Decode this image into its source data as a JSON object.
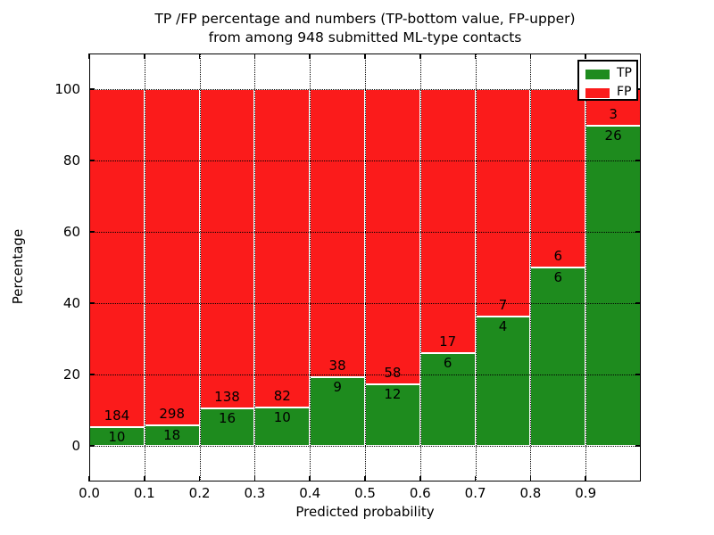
{
  "figure": {
    "title_line1": "TP /FP percentage and numbers (TP-bottom value, FP-upper)",
    "title_line2": "from among 948 submitted ML-type contacts",
    "xlabel": "Predicted probability",
    "ylabel": "Percentage"
  },
  "legend": {
    "items": [
      {
        "label": "TP",
        "color": "#1e8b1e"
      },
      {
        "label": "FP",
        "color": "#fb1b1b"
      }
    ]
  },
  "chart_data": {
    "type": "bar",
    "stacked": true,
    "normalized_to_percent": true,
    "title": "TP /FP percentage and numbers (TP-bottom value, FP-upper) from among 948 submitted ML-type contacts",
    "xlabel": "Predicted probability",
    "ylabel": "Percentage",
    "total_contacts": 948,
    "bin_starts": [
      0.0,
      0.1,
      0.2,
      0.3,
      0.4,
      0.5,
      0.6,
      0.7,
      0.8,
      0.9
    ],
    "bin_width": 0.1,
    "series": [
      {
        "name": "TP",
        "color": "#1e8b1e",
        "counts": [
          10,
          18,
          16,
          10,
          9,
          12,
          6,
          4,
          6,
          26
        ],
        "percent": [
          5.15,
          5.7,
          10.39,
          10.87,
          19.15,
          17.14,
          26.09,
          36.36,
          50.0,
          89.66
        ]
      },
      {
        "name": "FP",
        "color": "#fb1b1b",
        "counts": [
          184,
          298,
          138,
          82,
          38,
          58,
          17,
          7,
          6,
          3
        ],
        "percent": [
          94.85,
          94.3,
          89.61,
          89.13,
          80.85,
          82.86,
          73.91,
          63.64,
          50.0,
          10.34
        ]
      }
    ],
    "yticks": [
      0,
      20,
      40,
      60,
      80,
      100
    ],
    "xticks": [
      "0.0",
      "0.1",
      "0.2",
      "0.3",
      "0.4",
      "0.5",
      "0.6",
      "0.7",
      "0.8",
      "0.9"
    ],
    "ylim": [
      -10,
      110
    ],
    "xlim": [
      0.0,
      1.0
    ],
    "grid": "dotted black, both axes",
    "legend_position": "upper right",
    "bar_edge_color": "#ffffff",
    "annotation_note": "TP count below segment boundary, FP count above segment boundary"
  }
}
